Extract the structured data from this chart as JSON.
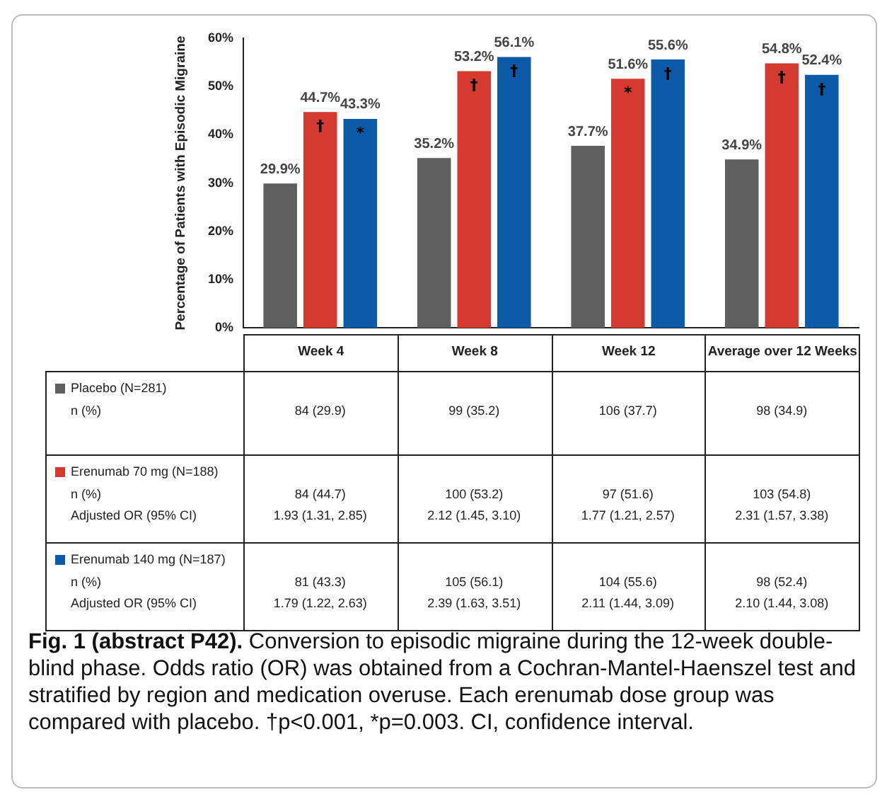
{
  "chart_data": {
    "type": "bar",
    "title": "Fig. 1 (abstract P42).",
    "ylabel": "Percentage of Patients with Episodic Migraine",
    "categories": [
      "Week 4",
      "Week 8",
      "Week 12",
      "Average over 12 Weeks"
    ],
    "series": [
      {
        "name": "Placebo (N=281)",
        "color": "#5f5f5f",
        "values": [
          29.9,
          35.2,
          37.7,
          34.9
        ],
        "value_labels": [
          "29.9%",
          "35.2%",
          "37.7%",
          "34.9%"
        ]
      },
      {
        "name": "Erenumab 70 mg (N=188)",
        "color": "#d43a2f",
        "values": [
          44.7,
          53.2,
          51.6,
          54.8
        ],
        "value_labels": [
          "44.7%",
          "53.2%",
          "51.6%",
          "54.8%"
        ]
      },
      {
        "name": "Erenumab 140 mg (N=187)",
        "color": "#0a5aa8",
        "values": [
          43.3,
          56.1,
          55.6,
          52.4
        ],
        "value_labels": [
          "43.3%",
          "56.1%",
          "55.6%",
          "52.4%"
        ]
      }
    ],
    "ylim": [
      0,
      60
    ],
    "yticks": [
      {
        "value": 0,
        "label": "0%"
      },
      {
        "value": 10,
        "label": "10%"
      },
      {
        "value": 20,
        "label": "20%"
      },
      {
        "value": 30,
        "label": "30%"
      },
      {
        "value": 40,
        "label": "40%"
      },
      {
        "value": 50,
        "label": "50%"
      },
      {
        "value": 60,
        "label": "60%"
      }
    ],
    "grid": false,
    "legend": "bottom",
    "annotations": [
      "Conversion to episodic migraine during the 12-week double-blind phase. Odds ratio (OR) was obtained from a Cochran-Mantel-Haenszel test and stratified by region and medication overuse. Each erenumab dose group was compared with placebo. †p<0.001, *p=0.003. CI, confidence interval.",
      "n (%)",
      "84 (29.9)",
      "99 (35.2)",
      "106 (37.7)",
      "98 (34.9)",
      "n (%)",
      "84 (44.7)",
      "100 (53.2)",
      "97 (51.6)",
      "103 (54.8)",
      "Adjusted OR (95% CI)",
      "1.93 (1.31, 2.85)",
      "2.12 (1.45, 3.10)",
      "1.77 (1.21, 2.57)",
      "2.31 (1.57, 3.38)",
      "n (%)",
      "81 (43.3)",
      "105 (56.1)",
      "104 (55.6)",
      "98 (52.4)",
      "Adjusted OR (95% CI)",
      "1.79 (1.22, 2.63)",
      "2.39 (1.63, 3.51)",
      "2.11 (1.44, 3.09)",
      "2.10 (1.44, 3.08)",
      "†",
      "*",
      "†",
      "†",
      "*",
      "†",
      "†",
      "†"
    ]
  }
}
